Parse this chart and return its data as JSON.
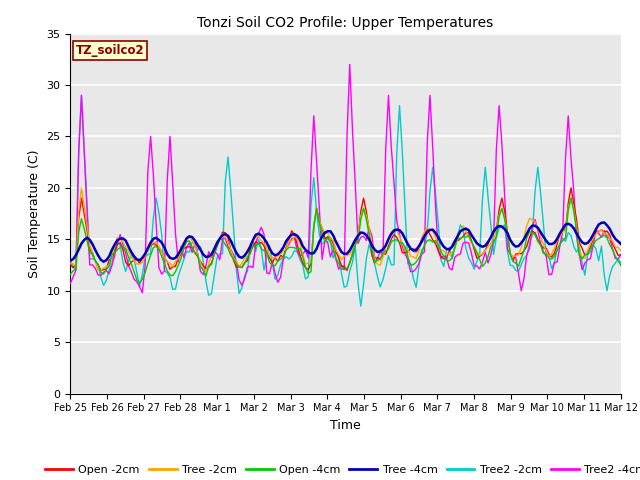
{
  "title": "Tonzi Soil CO2 Profile: Upper Temperatures",
  "xlabel": "Time",
  "ylabel": "Soil Temperature (C)",
  "ylim": [
    0,
    35
  ],
  "yticks": [
    0,
    5,
    10,
    15,
    20,
    25,
    30,
    35
  ],
  "xtick_labels": [
    "Feb 25",
    "Feb 26",
    "Feb 27",
    "Feb 28",
    "Mar 1",
    "Mar 2",
    "Mar 3",
    "Mar 4",
    "Mar 5",
    "Mar 6",
    "Mar 7",
    "Mar 8",
    "Mar 9",
    "Mar 10",
    "Mar 11",
    "Mar 12"
  ],
  "annotation_text": "TZ_soilco2",
  "annotation_color": "#8B0000",
  "annotation_bgcolor": "#FFFFCC",
  "annotation_edgecolor": "#8B0000",
  "series_colors": {
    "Open -2cm": "#FF0000",
    "Tree -2cm": "#FFA500",
    "Open -4cm": "#00CC00",
    "Tree -4cm": "#0000BB",
    "Tree2 -2cm": "#00CCCC",
    "Tree2 -4cm": "#FF00FF"
  },
  "background_color": "#E8E8E8",
  "grid_color": "#FFFFFF",
  "n_points": 200
}
